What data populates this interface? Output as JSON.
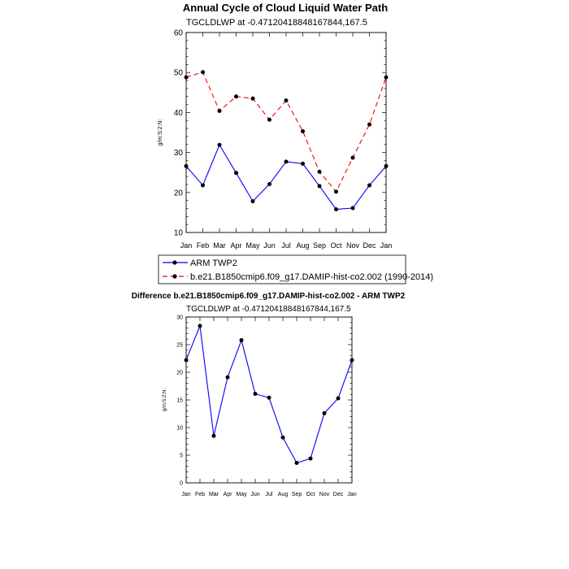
{
  "chart_data": [
    {
      "type": "line",
      "title": "Annual Cycle of Cloud Liquid Water Path",
      "subtitle": "TGCLDLWP at -0.47120418848167844,167.5",
      "xlabel": "",
      "ylabel": "g/m:S:2:N:",
      "ylim": [
        10,
        60
      ],
      "yticks": [
        "10",
        "20",
        "30",
        "40",
        "50",
        "60"
      ],
      "categories": [
        "Jan",
        "Feb",
        "Mar",
        "Apr",
        "May",
        "Jun",
        "Jul",
        "Aug",
        "Sep",
        "Oct",
        "Nov",
        "Dec",
        "Jan"
      ],
      "series": [
        {
          "name": "ARM TWP2",
          "color": "#0000ff",
          "dash": "solid",
          "values": [
            26.6,
            21.8,
            31.9,
            24.9,
            17.8,
            22.1,
            27.7,
            27.2,
            21.6,
            15.8,
            16.1,
            21.8,
            26.6
          ]
        },
        {
          "name": "b.e21.B1850cmip6.f09_g17.DAMIP-hist-co2.002 (1990-2014)",
          "color": "#ff0000",
          "dash": "dashed",
          "values": [
            48.8,
            50.1,
            40.4,
            44.0,
            43.5,
            38.2,
            43.0,
            35.3,
            25.2,
            20.2,
            28.7,
            37.0,
            48.8
          ]
        }
      ],
      "legend": "below"
    },
    {
      "type": "line",
      "title": "Difference b.e21.B1850cmip6.f09_g17.DAMIP-hist-co2.002 - ARM TWP2",
      "subtitle": "TGCLDLWP at -0.47120418848167844,167.5",
      "xlabel": "",
      "ylabel": "g/m:S:2:N:",
      "ylim": [
        0,
        30
      ],
      "yticks": [
        "0",
        "5",
        "10",
        "15",
        "20",
        "25",
        "30"
      ],
      "categories": [
        "Jan",
        "Feb",
        "Mar",
        "Apr",
        "May",
        "Jun",
        "Jul",
        "Aug",
        "Sep",
        "Oct",
        "Nov",
        "Dec",
        "Jan"
      ],
      "series": [
        {
          "name": "Difference",
          "color": "#0000ff",
          "dash": "solid",
          "values": [
            22.2,
            28.4,
            8.5,
            19.1,
            25.8,
            16.1,
            15.4,
            8.2,
            3.6,
            4.4,
            12.6,
            15.3,
            22.2
          ]
        }
      ]
    }
  ]
}
